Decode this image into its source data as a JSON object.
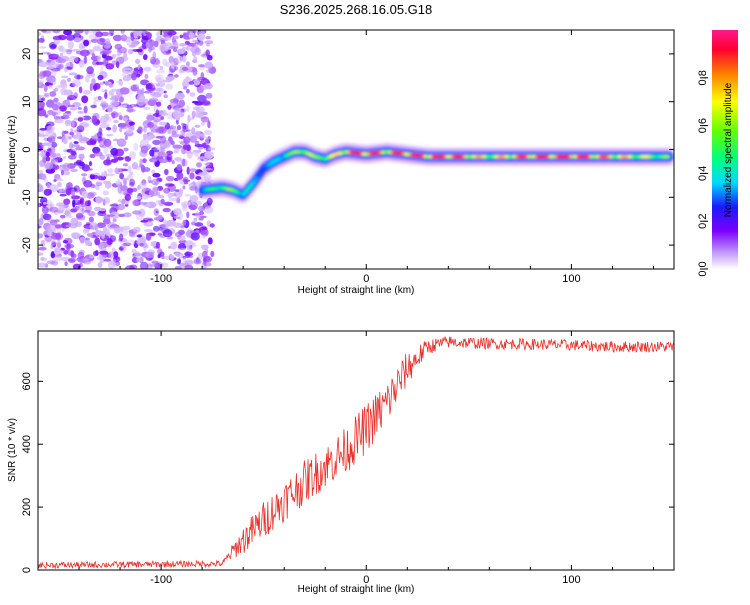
{
  "title": "S236.2025.268.16.05.G18",
  "chart_data": [
    {
      "type": "heatmap",
      "title": "S236.2025.268.16.05.G18",
      "xlabel": "Height of straight line (km)",
      "ylabel": "Frequency (Hz)",
      "xlim": [
        -160,
        150
      ],
      "ylim": [
        -25,
        25
      ],
      "xticks": [
        "-100",
        "0",
        "100"
      ],
      "yticks": [
        "-20",
        "-10",
        "0",
        "10",
        "20"
      ],
      "xtick_values": [
        -100,
        0,
        100
      ],
      "ytick_values": [
        -20,
        -10,
        0,
        10,
        20
      ],
      "noise_region_x": [
        -160,
        -75
      ],
      "ridge": {
        "x": [
          -80,
          -70,
          -65,
          -60,
          -55,
          -50,
          -45,
          -40,
          -35,
          -30,
          -25,
          -20,
          -15,
          -10,
          0,
          10,
          20,
          30,
          40,
          60,
          80,
          100,
          120,
          148
        ],
        "frequency": [
          -8.5,
          -8.0,
          -8.5,
          -9.5,
          -7.0,
          -4.0,
          -2.5,
          -1.5,
          -0.5,
          -0.5,
          -1.5,
          -2.0,
          -1.0,
          -0.5,
          -1.0,
          -0.5,
          -1.0,
          -1.5,
          -1.5,
          -1.5,
          -1.5,
          -1.5,
          -1.5,
          -1.5
        ],
        "amplitude": [
          0.3,
          0.55,
          0.5,
          0.45,
          0.3,
          0.3,
          0.3,
          0.45,
          0.5,
          0.7,
          0.5,
          0.6,
          0.6,
          0.75,
          0.85,
          0.7,
          0.85,
          0.8,
          0.85,
          0.6,
          0.8,
          0.85,
          0.7,
          0.5
        ]
      },
      "colorbar": {
        "label": "Normalized spectral amplitude",
        "range": [
          0,
          1
        ],
        "ticks": [
          "0.0",
          "0.2",
          "0.4",
          "0.6",
          "0.8"
        ],
        "tick_values": [
          0.0,
          0.2,
          0.4,
          0.6,
          0.8
        ]
      }
    },
    {
      "type": "line",
      "xlabel": "Height of straight line (km)",
      "ylabel": "SNR (10 * v/v)",
      "xlim": [
        -160,
        150
      ],
      "ylim": [
        0,
        760
      ],
      "xticks": [
        "-100",
        "0",
        "100"
      ],
      "yticks": [
        "0",
        "200",
        "400",
        "600"
      ],
      "xtick_values": [
        -100,
        0,
        100
      ],
      "ytick_values": [
        0,
        200,
        400,
        600
      ],
      "series": [
        {
          "name": "SNR",
          "color": "#e8302a",
          "x": [
            -160,
            -70,
            -65,
            -60,
            -50,
            -40,
            -30,
            -20,
            -10,
            0,
            10,
            20,
            30,
            40,
            60,
            80,
            100,
            120,
            150
          ],
          "y": [
            15,
            20,
            60,
            95,
            160,
            220,
            280,
            330,
            380,
            450,
            530,
            640,
            710,
            725,
            720,
            718,
            715,
            710,
            710
          ],
          "noise_amplitude": [
            10,
            10,
            25,
            45,
            60,
            65,
            70,
            70,
            75,
            80,
            75,
            55,
            25,
            20,
            18,
            18,
            18,
            18,
            18
          ]
        }
      ]
    }
  ]
}
